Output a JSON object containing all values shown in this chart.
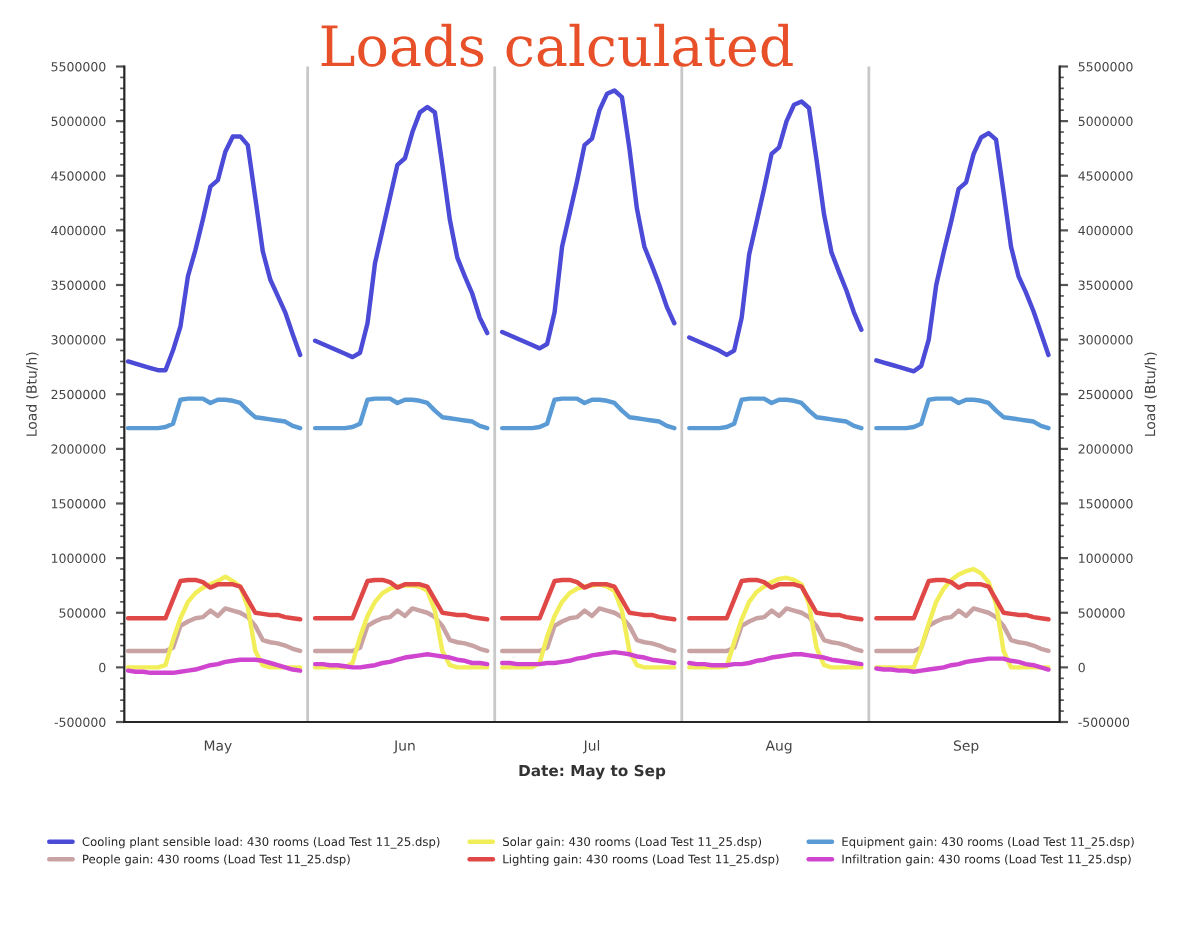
{
  "chart_data": {
    "type": "line",
    "title": "Loads calculated",
    "xlabel": "Date: May to Sep",
    "ylabel": "Load (Btu/h)",
    "y2label": "Load (Btu/h)",
    "categories": [
      null,
      null,
      null,
      null,
      null,
      null,
      null,
      null,
      null,
      null,
      null,
      null,
      "May",
      null,
      null,
      null,
      null,
      null,
      null,
      null,
      null,
      null,
      null,
      null,
      null,
      null,
      null,
      null,
      null,
      null,
      null,
      null,
      null,
      null,
      null,
      null,
      null,
      "Jun",
      null,
      null,
      null,
      null,
      null,
      null,
      null,
      null,
      null,
      null,
      null,
      null,
      null,
      null,
      null,
      null,
      null,
      null,
      null,
      null,
      null,
      null,
      null,
      null,
      "Jul",
      null,
      null,
      null,
      null,
      null,
      null,
      null,
      null,
      null,
      null,
      null,
      null,
      null,
      null,
      null,
      null,
      null,
      null,
      null,
      null,
      null,
      null,
      null,
      null,
      "Aug",
      null,
      null,
      null,
      null,
      null,
      null,
      null,
      null,
      null,
      null,
      null,
      null,
      null,
      null,
      null,
      null,
      null,
      null,
      null,
      null,
      null,
      null,
      null,
      null,
      "Sep",
      null,
      null,
      null,
      null,
      null,
      null,
      null,
      null,
      null,
      null,
      null,
      null
    ],
    "ylim": [
      -500000,
      5500000
    ],
    "yticks": [
      -500000,
      0,
      500000,
      1000000,
      1500000,
      2000000,
      2500000,
      3000000,
      3500000,
      4000000,
      4500000,
      5000000,
      5500000
    ],
    "y2lim": [
      -500000,
      5500000
    ],
    "y2ticks": [
      -500000,
      0,
      500000,
      1000000,
      1500000,
      2000000,
      2500000,
      3000000,
      3500000,
      4000000,
      4500000,
      5000000,
      5500000
    ],
    "grid": false,
    "legend": "bottom",
    "marker": "none",
    "line_style": "solid",
    "series": [
      {
        "name": "Cooling plant sensible load: 430 rooms (Load Test 11_25.dsp)",
        "color": "#4b4bd8",
        "values": [
          2800000,
          2780000,
          2760000,
          2740000,
          2720000,
          2720000,
          2900000,
          3120000,
          3580000,
          3820000,
          4100000,
          4400000,
          4460000,
          4720000,
          4860000,
          4860000,
          4780000,
          4300000,
          3810000,
          3550000,
          3400000,
          3250000,
          3050000,
          2860000,
          null,
          2990000,
          2960000,
          2930000,
          2900000,
          2870000,
          2840000,
          2880000,
          3150000,
          3700000,
          4000000,
          4300000,
          4600000,
          4660000,
          4900000,
          5080000,
          5130000,
          5080000,
          4600000,
          4100000,
          3750000,
          3580000,
          3420000,
          3200000,
          3060000,
          null,
          3070000,
          3040000,
          3010000,
          2980000,
          2950000,
          2920000,
          2960000,
          3250000,
          3850000,
          4150000,
          4450000,
          4780000,
          4840000,
          5100000,
          5250000,
          5280000,
          5220000,
          4750000,
          4200000,
          3850000,
          3680000,
          3500000,
          3300000,
          3150000,
          null,
          3020000,
          2990000,
          2960000,
          2930000,
          2900000,
          2860000,
          2900000,
          3200000,
          3780000,
          4080000,
          4380000,
          4700000,
          4760000,
          5000000,
          5150000,
          5180000,
          5120000,
          4650000,
          4150000,
          3800000,
          3620000,
          3450000,
          3250000,
          3090000,
          null,
          2810000,
          2790000,
          2770000,
          2750000,
          2730000,
          2710000,
          2760000,
          3000000,
          3500000,
          3800000,
          4080000,
          4380000,
          4440000,
          4700000,
          4850000,
          4890000,
          4830000,
          4350000,
          3850000,
          3580000,
          3430000,
          3260000,
          3060000,
          2860000,
          null
        ]
      },
      {
        "name": "People gain: 430 rooms (Load Test 11_25.dsp)",
        "color": "#c9a3a3",
        "values": [
          150000,
          150000,
          150000,
          150000,
          150000,
          150000,
          180000,
          380000,
          420000,
          450000,
          460000,
          520000,
          470000,
          540000,
          520000,
          500000,
          460000,
          380000,
          250000,
          230000,
          220000,
          200000,
          170000,
          150000,
          null,
          150000,
          150000,
          150000,
          150000,
          150000,
          150000,
          180000,
          380000,
          420000,
          450000,
          460000,
          520000,
          470000,
          540000,
          520000,
          500000,
          460000,
          380000,
          250000,
          230000,
          220000,
          200000,
          170000,
          150000,
          null,
          150000,
          150000,
          150000,
          150000,
          150000,
          150000,
          180000,
          380000,
          420000,
          450000,
          460000,
          520000,
          470000,
          540000,
          520000,
          500000,
          460000,
          380000,
          250000,
          230000,
          220000,
          200000,
          170000,
          150000,
          null,
          150000,
          150000,
          150000,
          150000,
          150000,
          150000,
          180000,
          380000,
          420000,
          450000,
          460000,
          520000,
          470000,
          540000,
          520000,
          500000,
          460000,
          380000,
          250000,
          230000,
          220000,
          200000,
          170000,
          150000,
          null,
          150000,
          150000,
          150000,
          150000,
          150000,
          150000,
          180000,
          380000,
          420000,
          450000,
          460000,
          520000,
          470000,
          540000,
          520000,
          500000,
          460000,
          380000,
          250000,
          230000,
          220000,
          200000,
          170000,
          150000,
          null
        ]
      },
      {
        "name": "Solar gain: 430 rooms (Load Test 11_25.dsp)",
        "color": "#f2ee5a",
        "values": [
          0,
          0,
          0,
          0,
          0,
          20000,
          250000,
          450000,
          600000,
          680000,
          730000,
          760000,
          790000,
          830000,
          790000,
          740000,
          550000,
          150000,
          20000,
          0,
          0,
          0,
          0,
          0,
          null,
          0,
          0,
          0,
          0,
          0,
          40000,
          280000,
          470000,
          600000,
          680000,
          720000,
          740000,
          750000,
          750000,
          740000,
          700000,
          520000,
          150000,
          20000,
          0,
          0,
          0,
          0,
          0,
          null,
          0,
          0,
          0,
          0,
          0,
          40000,
          280000,
          470000,
          600000,
          680000,
          720000,
          740000,
          750000,
          760000,
          740000,
          700000,
          520000,
          150000,
          20000,
          0,
          0,
          0,
          0,
          0,
          null,
          0,
          0,
          0,
          0,
          0,
          10000,
          230000,
          440000,
          600000,
          690000,
          740000,
          780000,
          810000,
          820000,
          800000,
          760000,
          580000,
          180000,
          20000,
          0,
          0,
          0,
          0,
          0,
          null,
          0,
          0,
          0,
          0,
          0,
          0,
          180000,
          400000,
          600000,
          720000,
          800000,
          850000,
          880000,
          900000,
          860000,
          780000,
          580000,
          150000,
          0,
          0,
          0,
          0,
          0,
          0,
          null
        ]
      },
      {
        "name": "Lighting gain: 430 rooms (Load Test 11_25.dsp)",
        "color": "#e04848",
        "values": [
          450000,
          450000,
          450000,
          450000,
          450000,
          450000,
          620000,
          790000,
          800000,
          800000,
          780000,
          730000,
          760000,
          760000,
          760000,
          740000,
          620000,
          500000,
          490000,
          480000,
          480000,
          460000,
          450000,
          440000,
          null,
          450000,
          450000,
          450000,
          450000,
          450000,
          450000,
          620000,
          790000,
          800000,
          800000,
          780000,
          730000,
          760000,
          760000,
          760000,
          740000,
          620000,
          500000,
          490000,
          480000,
          480000,
          460000,
          450000,
          440000,
          null,
          450000,
          450000,
          450000,
          450000,
          450000,
          450000,
          620000,
          790000,
          800000,
          800000,
          780000,
          730000,
          760000,
          760000,
          760000,
          740000,
          620000,
          500000,
          490000,
          480000,
          480000,
          460000,
          450000,
          440000,
          null,
          450000,
          450000,
          450000,
          450000,
          450000,
          450000,
          620000,
          790000,
          800000,
          800000,
          780000,
          730000,
          760000,
          760000,
          760000,
          740000,
          620000,
          500000,
          490000,
          480000,
          480000,
          460000,
          450000,
          440000,
          null,
          450000,
          450000,
          450000,
          450000,
          450000,
          450000,
          620000,
          790000,
          800000,
          800000,
          780000,
          730000,
          760000,
          760000,
          760000,
          740000,
          620000,
          500000,
          490000,
          480000,
          480000,
          460000,
          450000,
          440000,
          null
        ]
      },
      {
        "name": "Equipment gain: 430 rooms (Load Test 11_25.dsp)",
        "color": "#5b9bd5",
        "values": [
          2190000,
          2190000,
          2190000,
          2190000,
          2190000,
          2200000,
          2230000,
          2450000,
          2460000,
          2460000,
          2460000,
          2420000,
          2450000,
          2450000,
          2440000,
          2420000,
          2350000,
          2290000,
          2280000,
          2270000,
          2260000,
          2250000,
          2210000,
          2190000,
          null,
          2190000,
          2190000,
          2190000,
          2190000,
          2190000,
          2200000,
          2230000,
          2450000,
          2460000,
          2460000,
          2460000,
          2420000,
          2450000,
          2450000,
          2440000,
          2420000,
          2350000,
          2290000,
          2280000,
          2270000,
          2260000,
          2250000,
          2210000,
          2190000,
          null,
          2190000,
          2190000,
          2190000,
          2190000,
          2190000,
          2200000,
          2230000,
          2450000,
          2460000,
          2460000,
          2460000,
          2420000,
          2450000,
          2450000,
          2440000,
          2420000,
          2350000,
          2290000,
          2280000,
          2270000,
          2260000,
          2250000,
          2210000,
          2190000,
          null,
          2190000,
          2190000,
          2190000,
          2190000,
          2190000,
          2200000,
          2230000,
          2450000,
          2460000,
          2460000,
          2460000,
          2420000,
          2450000,
          2450000,
          2440000,
          2420000,
          2350000,
          2290000,
          2280000,
          2270000,
          2260000,
          2250000,
          2210000,
          2190000,
          null,
          2190000,
          2190000,
          2190000,
          2190000,
          2190000,
          2200000,
          2230000,
          2450000,
          2460000,
          2460000,
          2460000,
          2420000,
          2450000,
          2450000,
          2440000,
          2420000,
          2350000,
          2290000,
          2280000,
          2270000,
          2260000,
          2250000,
          2210000,
          2190000,
          null
        ]
      },
      {
        "name": "Infiltration gain: 430 rooms (Load Test 11_25.dsp)",
        "color": "#d045d0",
        "values": [
          -30000,
          -40000,
          -40000,
          -50000,
          -50000,
          -50000,
          -50000,
          -40000,
          -30000,
          -20000,
          0,
          20000,
          30000,
          50000,
          60000,
          70000,
          70000,
          70000,
          60000,
          40000,
          20000,
          0,
          -20000,
          -30000,
          null,
          30000,
          30000,
          20000,
          20000,
          10000,
          0,
          0,
          10000,
          20000,
          40000,
          50000,
          70000,
          90000,
          100000,
          110000,
          120000,
          110000,
          100000,
          90000,
          70000,
          60000,
          40000,
          40000,
          30000,
          null,
          40000,
          40000,
          30000,
          30000,
          30000,
          30000,
          40000,
          40000,
          50000,
          60000,
          80000,
          90000,
          110000,
          120000,
          130000,
          140000,
          130000,
          120000,
          100000,
          90000,
          70000,
          60000,
          50000,
          40000,
          null,
          40000,
          30000,
          30000,
          20000,
          20000,
          20000,
          30000,
          30000,
          40000,
          60000,
          70000,
          90000,
          100000,
          110000,
          120000,
          120000,
          110000,
          100000,
          90000,
          70000,
          60000,
          50000,
          40000,
          30000,
          null,
          -10000,
          -20000,
          -20000,
          -30000,
          -30000,
          -40000,
          -30000,
          -20000,
          -10000,
          0,
          20000,
          30000,
          50000,
          60000,
          70000,
          80000,
          80000,
          80000,
          60000,
          50000,
          30000,
          20000,
          0,
          -20000,
          null
        ]
      }
    ]
  }
}
